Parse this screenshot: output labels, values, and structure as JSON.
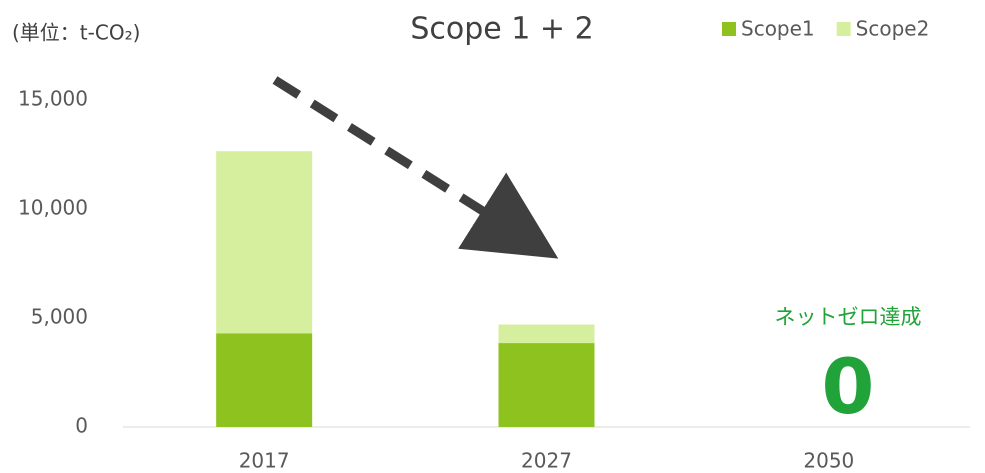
{
  "chart_data": {
    "type": "bar",
    "stacked": true,
    "title": "Scope 1 + 2",
    "unit_label": "(単位：t-CO₂)",
    "categories": [
      "2017",
      "2027",
      "2050"
    ],
    "series": [
      {
        "name": "Scope1",
        "color": "#8dc21f",
        "values": [
          4300,
          3850,
          0
        ]
      },
      {
        "name": "Scope2",
        "color": "#d5ef9f",
        "values": [
          8350,
          850,
          0
        ]
      }
    ],
    "ylim": [
      0,
      15000
    ],
    "yticks": [
      0,
      {
        "value": 5000,
        "label": "5,000"
      },
      {
        "value": 10000,
        "label": "10,000"
      },
      {
        "value": 15000,
        "label": "15,000"
      }
    ],
    "legend": "top-right",
    "annotations": [
      "ネットゼロ達成",
      "0"
    ]
  }
}
